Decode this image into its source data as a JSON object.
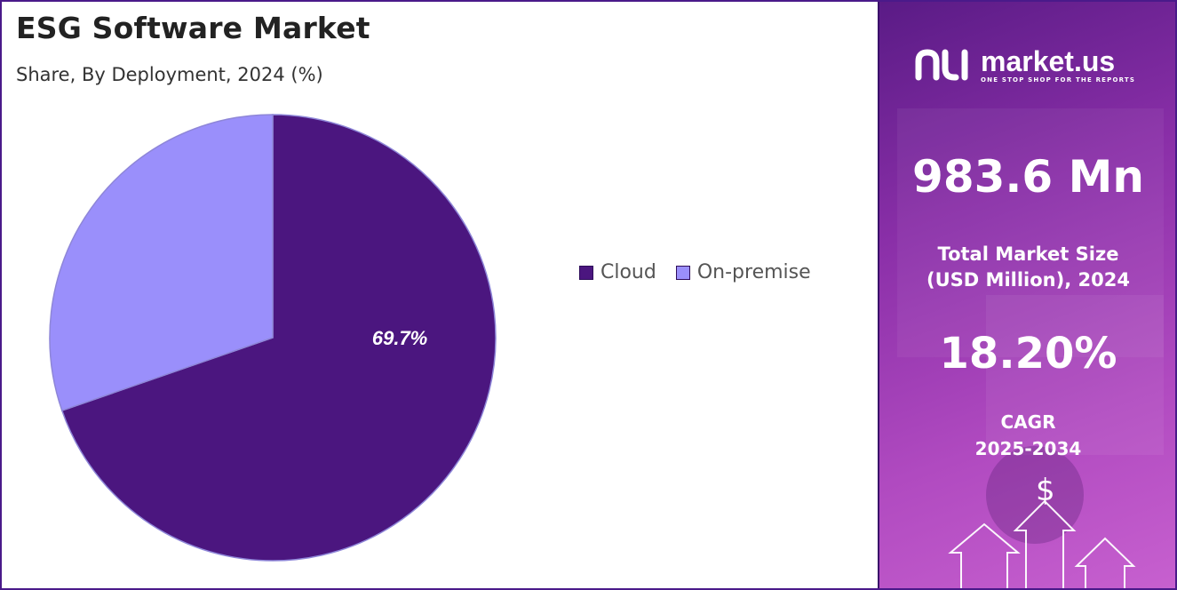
{
  "title": "ESG Software Market",
  "subtitle": "Share, By Deployment, 2024 (%)",
  "chart_data": {
    "type": "pie",
    "title": "ESG Software Market",
    "subtitle": "Share, By Deployment, 2024 (%)",
    "categories": [
      "Cloud",
      "On-premise"
    ],
    "values": [
      69.7,
      30.3
    ],
    "colors": [
      "#4b167f",
      "#9a8ffb"
    ],
    "data_labels": [
      "69.7%",
      ""
    ],
    "legend_position": "right"
  },
  "legend": {
    "items": [
      {
        "label": "Cloud",
        "color": "#4b167f"
      },
      {
        "label": "On-premise",
        "color": "#9a8ffb"
      }
    ]
  },
  "sidebar": {
    "logo_name": "market.us",
    "logo_tagline": "ONE STOP SHOP FOR THE REPORTS",
    "market_size_value": "983.6 Mn",
    "market_size_label_line1": "Total Market Size",
    "market_size_label_line2": "(USD Million), 2024",
    "cagr_value": "18.20%",
    "cagr_label_line1": "CAGR",
    "cagr_label_line2": "2025-2034",
    "currency_symbol": "$",
    "logo_icon": "market-us-logo-icon",
    "arrow_icon": "up-arrow-icon"
  }
}
